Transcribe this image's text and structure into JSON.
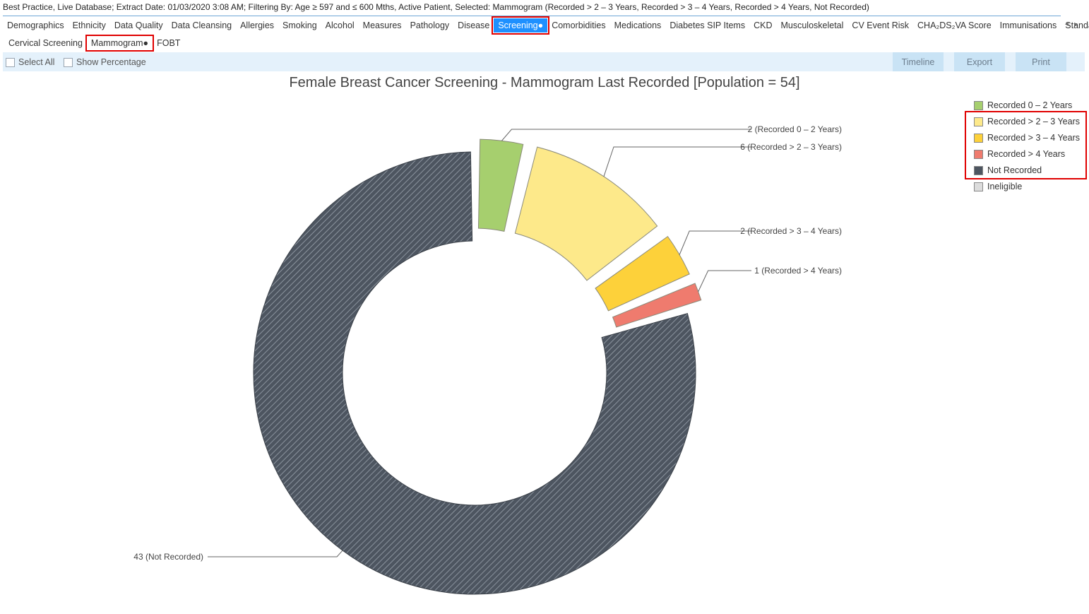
{
  "status": "Best Practice, Live Database; Extract Date: 01/03/2020 3:08 AM; Filtering By: Age ≥ 597 and ≤ 600 Mths, Active Patient, Selected: Mammogram (Recorded > 2 – 3 Years, Recorded > 3 – 4 Years, Recorded > 4 Years, Not Recorded)",
  "main_tabs": [
    {
      "label": "Demographics"
    },
    {
      "label": "Ethnicity"
    },
    {
      "label": "Data Quality"
    },
    {
      "label": "Data Cleansing"
    },
    {
      "label": "Allergies"
    },
    {
      "label": "Smoking"
    },
    {
      "label": "Alcohol"
    },
    {
      "label": "Measures"
    },
    {
      "label": "Pathology"
    },
    {
      "label": "Disease"
    },
    {
      "label": "Screening●"
    },
    {
      "label": "Comorbidities"
    },
    {
      "label": "Medications"
    },
    {
      "label": "Diabetes SIP Items"
    },
    {
      "label": "CKD"
    },
    {
      "label": "Musculoskeletal"
    },
    {
      "label": "CV Event Risk"
    },
    {
      "label": "CHA₂DS₂VA Score"
    },
    {
      "label": "Immunisations"
    },
    {
      "label": "Standard R"
    }
  ],
  "active_main_tab": "Screening●",
  "tab_scroll": {
    "left": "◂",
    "right": "▸"
  },
  "sub_tabs": [
    {
      "label": "Cervical Screening"
    },
    {
      "label": "Mammogram●"
    },
    {
      "label": "FOBT"
    }
  ],
  "active_sub_tab": "Mammogram●",
  "toolbar": {
    "select_all": "Select All",
    "show_percentage": "Show Percentage",
    "timeline": "Timeline",
    "export": "Export",
    "print": "Print"
  },
  "chart_data": {
    "type": "pie",
    "style": "donut",
    "title": "Female Breast Cancer Screening - Mammogram Last Recorded [Population = 54]",
    "slices": [
      {
        "name": "Recorded 0 – 2 Years",
        "value": 2,
        "color": "#a6cf6e",
        "label": "2 (Recorded 0 – 2 Years)"
      },
      {
        "name": "Recorded > 2 – 3 Years",
        "value": 6,
        "color": "#fde98a",
        "label": "6 (Recorded > 2 – 3 Years)"
      },
      {
        "name": "Recorded > 3 – 4 Years",
        "value": 2,
        "color": "#fdd13a",
        "label": "2 (Recorded > 3 – 4 Years)"
      },
      {
        "name": "Recorded > 4 Years",
        "value": 1,
        "color": "#ef7b6e",
        "label": "1 (Recorded > 4 Years)"
      },
      {
        "name": "Not Recorded",
        "value": 43,
        "color": "#4d5560",
        "label": "43 (Not Recorded)",
        "pattern": "diagonal-hatch"
      }
    ],
    "legend": [
      {
        "name": "Recorded 0 – 2 Years",
        "color": "#a6cf6e"
      },
      {
        "name": "Recorded > 2 – 3 Years",
        "color": "#fde98a"
      },
      {
        "name": "Recorded > 3 – 4 Years",
        "color": "#fdd13a"
      },
      {
        "name": "Recorded > 4 Years",
        "color": "#ef7b6e"
      },
      {
        "name": "Not Recorded",
        "color": "#4d5560"
      },
      {
        "name": "Ineligible",
        "color": "#dcdcdc"
      }
    ],
    "legend_position": "right",
    "selected": [
      "Recorded > 2 – 3 Years",
      "Recorded > 3 – 4 Years",
      "Recorded > 4 Years",
      "Not Recorded"
    ]
  }
}
